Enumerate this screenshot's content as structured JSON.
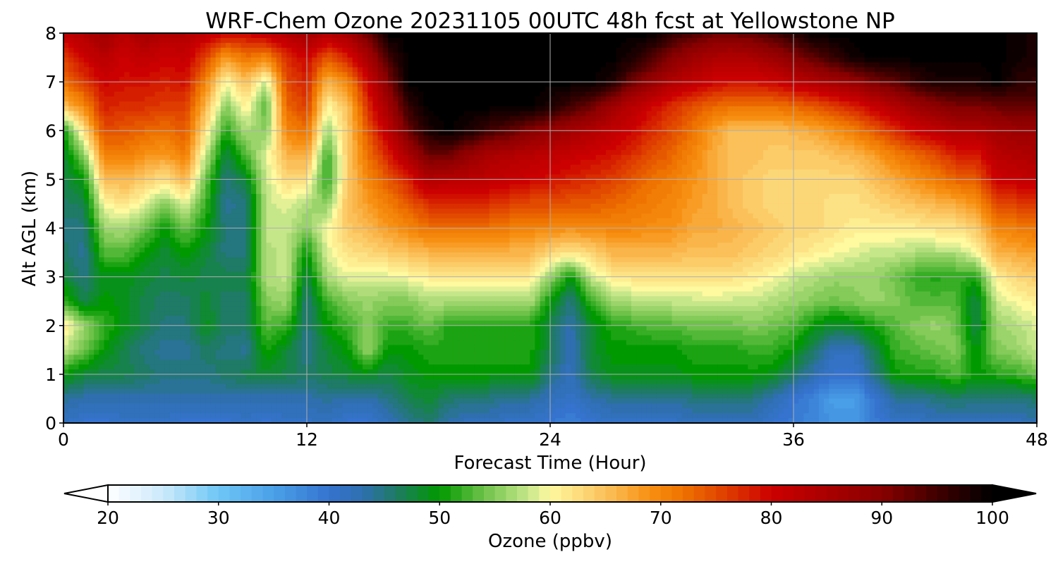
{
  "chart_data": {
    "type": "heatmap",
    "title": "WRF-Chem Ozone  20231105 00UTC 48h fcst at Yellowstone NP",
    "xlabel": "Forecast Time (Hour)",
    "ylabel": "Alt AGL (km)",
    "xlim": [
      0,
      48
    ],
    "ylim": [
      0,
      8
    ],
    "x_ticks": [
      0,
      12,
      24,
      36,
      48
    ],
    "y_ticks": [
      0,
      1,
      2,
      3,
      4,
      5,
      6,
      7,
      8
    ],
    "grid": true,
    "x_hours": [
      0,
      1,
      2,
      3,
      4,
      5,
      6,
      7,
      8,
      9,
      10,
      11,
      12,
      13,
      14,
      15,
      16,
      17,
      18,
      19,
      20,
      21,
      22,
      23,
      24,
      25,
      26,
      27,
      28,
      29,
      30,
      31,
      32,
      33,
      34,
      35,
      36,
      37,
      38,
      39,
      40,
      41,
      42,
      43,
      44,
      45,
      46,
      47,
      48
    ],
    "z_km": [
      0,
      0.5,
      1,
      1.5,
      2,
      2.5,
      3,
      3.5,
      4,
      4.5,
      5,
      5.5,
      6,
      6.5,
      7,
      7.5,
      8
    ],
    "ozone_ppbv": [
      [
        42,
        40,
        40,
        41,
        41,
        41,
        40,
        40,
        40,
        41,
        40,
        41,
        41,
        42,
        40,
        40,
        42,
        44,
        46,
        43,
        42,
        42,
        41,
        41,
        40,
        38,
        40,
        41,
        41,
        41,
        41,
        42,
        42,
        42,
        42,
        40,
        39,
        38,
        36,
        36,
        39,
        41,
        41,
        42,
        42,
        42,
        42,
        42,
        43
      ],
      [
        44,
        43,
        43,
        43,
        43,
        43,
        43,
        43,
        43,
        43,
        43,
        43,
        43,
        44,
        43,
        43,
        45,
        47,
        48,
        46,
        45,
        45,
        44,
        44,
        42,
        41,
        43,
        44,
        44,
        44,
        44,
        45,
        45,
        45,
        45,
        43,
        40,
        38,
        35,
        35,
        40,
        44,
        44,
        45,
        46,
        45,
        45,
        45,
        46
      ],
      [
        50,
        48,
        47,
        47,
        46,
        45,
        45,
        45,
        46,
        47,
        48,
        47,
        46,
        47,
        48,
        49,
        47,
        49,
        50,
        50,
        50,
        50,
        50,
        50,
        45,
        42,
        47,
        49,
        49,
        49,
        49,
        50,
        50,
        50,
        50,
        49,
        46,
        43,
        40,
        40,
        45,
        50,
        51,
        51,
        53,
        50,
        51,
        52,
        54
      ],
      [
        58,
        54,
        50,
        47,
        45,
        44,
        44,
        46,
        45,
        44,
        51,
        48,
        44,
        48,
        50,
        56,
        50,
        50,
        51,
        51,
        51,
        51,
        51,
        51,
        47,
        42,
        48,
        50,
        50,
        50,
        50,
        51,
        51,
        51,
        52,
        52,
        50,
        46,
        42,
        42,
        47,
        52,
        53,
        54,
        55,
        49,
        55,
        56,
        58
      ],
      [
        62,
        56,
        52,
        49,
        47,
        45,
        45,
        49,
        46,
        46,
        53,
        52,
        45,
        50,
        52,
        55,
        52,
        52,
        54,
        51,
        51,
        51,
        51,
        51,
        47,
        43,
        48,
        51,
        52,
        53,
        53,
        54,
        54,
        54,
        55,
        54,
        53,
        50,
        48,
        49,
        51,
        53,
        55,
        56,
        54,
        47,
        56,
        57,
        59
      ],
      [
        52,
        47,
        50,
        49,
        47,
        46,
        46,
        48,
        46,
        46,
        55,
        56,
        45,
        52,
        55,
        56,
        55,
        55,
        57,
        57,
        57,
        57,
        57,
        57,
        50,
        45,
        52,
        56,
        57,
        57,
        58,
        58,
        59,
        58,
        58,
        57,
        56,
        55,
        54,
        55,
        56,
        55,
        53,
        53,
        53,
        47,
        58,
        60,
        61
      ],
      [
        48,
        45,
        49,
        49,
        48,
        47,
        48,
        47,
        47,
        47,
        57,
        58,
        47,
        57,
        59,
        59,
        59,
        60,
        61,
        61,
        61,
        61,
        61,
        61,
        56,
        50,
        58,
        61,
        62,
        62,
        62,
        62,
        62,
        62,
        61,
        60,
        58,
        57,
        56,
        56,
        56,
        54,
        52,
        51,
        52,
        51,
        61,
        63,
        64
      ],
      [
        46,
        44,
        53,
        53,
        50,
        48,
        50,
        48,
        45,
        45,
        57,
        58,
        50,
        59,
        62,
        63,
        64,
        65,
        66,
        66,
        66,
        66,
        66,
        66,
        63,
        62,
        63,
        66,
        66,
        66,
        66,
        65,
        65,
        65,
        64,
        63,
        62,
        61,
        60,
        59,
        58,
        58,
        57,
        57,
        57,
        60,
        66,
        67,
        68
      ],
      [
        45,
        45,
        56,
        57,
        54,
        50,
        54,
        50,
        45,
        45,
        58,
        58,
        55,
        60,
        64,
        66,
        68,
        70,
        72,
        72,
        72,
        72,
        71,
        70,
        70,
        69,
        70,
        70,
        70,
        69,
        69,
        67,
        67,
        66,
        65,
        64,
        63,
        63,
        62,
        61,
        61,
        61,
        61,
        62,
        62,
        64,
        70,
        71,
        72
      ],
      [
        46,
        47,
        60,
        62,
        59,
        55,
        59,
        52,
        44,
        45,
        58,
        59,
        57,
        55,
        65,
        68,
        71,
        74,
        77,
        77,
        77,
        77,
        76,
        75,
        75,
        74,
        74,
        73,
        72,
        71,
        70,
        68,
        67,
        65,
        64,
        63,
        63,
        63,
        62,
        62,
        63,
        64,
        65,
        66,
        67,
        69,
        75,
        76,
        77
      ],
      [
        47,
        50,
        65,
        66,
        64,
        62,
        66,
        54,
        45,
        48,
        58,
        63,
        62,
        51,
        64,
        70,
        74,
        78,
        84,
        83,
        83,
        82,
        81,
        80,
        79,
        78,
        77,
        76,
        74,
        72,
        71,
        69,
        67,
        65,
        64,
        63,
        63,
        63,
        63,
        63,
        65,
        67,
        69,
        71,
        73,
        74,
        80,
        81,
        82
      ],
      [
        48,
        55,
        70,
        71,
        69,
        68,
        71,
        58,
        47,
        53,
        59,
        66,
        67,
        52,
        64,
        72,
        78,
        85,
        92,
        92,
        88,
        85,
        84,
        83,
        82,
        81,
        80,
        79,
        77,
        75,
        73,
        70,
        67,
        65,
        65,
        64,
        64,
        64,
        65,
        66,
        68,
        71,
        73,
        75,
        78,
        78,
        83,
        84,
        85
      ],
      [
        50,
        62,
        75,
        74,
        73,
        72,
        74,
        62,
        51,
        57,
        55,
        70,
        72,
        56,
        64,
        74,
        82,
        92,
        98,
        100,
        98,
        95,
        93,
        90,
        88,
        86,
        84,
        82,
        80,
        77,
        75,
        72,
        68,
        65,
        65,
        65,
        66,
        67,
        69,
        71,
        74,
        77,
        80,
        82,
        84,
        84,
        86,
        87,
        87
      ],
      [
        65,
        70,
        78,
        77,
        77,
        76,
        76,
        66,
        55,
        61,
        53,
        73,
        76,
        60,
        65,
        77,
        86,
        96,
        100,
        100,
        100,
        100,
        100,
        100,
        98,
        95,
        92,
        87,
        83,
        80,
        77,
        75,
        73,
        72,
        72,
        72,
        73,
        74,
        76,
        78,
        81,
        84,
        87,
        89,
        91,
        91,
        92,
        93,
        93
      ],
      [
        72,
        76,
        80,
        79,
        79,
        78,
        79,
        70,
        60,
        65,
        58,
        75,
        78,
        66,
        70,
        80,
        90,
        100,
        100,
        100,
        100,
        100,
        100,
        100,
        100,
        100,
        100,
        98,
        92,
        88,
        84,
        82,
        80,
        79,
        79,
        80,
        82,
        84,
        86,
        88,
        91,
        93,
        96,
        98,
        98,
        98,
        100,
        97,
        96
      ],
      [
        76,
        80,
        83,
        80,
        82,
        80,
        81,
        76,
        68,
        72,
        70,
        77,
        80,
        74,
        78,
        85,
        95,
        100,
        100,
        100,
        100,
        100,
        100,
        100,
        100,
        100,
        100,
        100,
        98,
        94,
        90,
        87,
        85,
        84,
        85,
        87,
        90,
        93,
        96,
        99,
        100,
        100,
        100,
        100,
        100,
        100,
        100,
        99,
        98
      ],
      [
        82,
        84,
        87,
        83,
        86,
        84,
        84,
        82,
        80,
        80,
        82,
        84,
        86,
        84,
        86,
        92,
        100,
        100,
        100,
        100,
        100,
        100,
        100,
        100,
        100,
        100,
        100,
        100,
        100,
        100,
        96,
        94,
        92,
        92,
        93,
        95,
        97,
        100,
        100,
        100,
        100,
        100,
        100,
        100,
        100,
        100,
        100,
        99,
        98
      ]
    ],
    "colorbar": {
      "label": "Ozone  (ppbv)",
      "min": 20,
      "max": 100,
      "step": 1,
      "ticks": [
        20,
        30,
        40,
        50,
        60,
        70,
        80,
        90,
        100
      ],
      "extend": "both",
      "stops": [
        {
          "v": 20,
          "c": "#ffffff"
        },
        {
          "v": 25,
          "c": "#cbe9fa"
        },
        {
          "v": 30,
          "c": "#6ec6f6"
        },
        {
          "v": 35,
          "c": "#4aa0e8"
        },
        {
          "v": 40,
          "c": "#3573cf"
        },
        {
          "v": 43,
          "c": "#2f6fb0"
        },
        {
          "v": 46,
          "c": "#1f7a66"
        },
        {
          "v": 50,
          "c": "#009900"
        },
        {
          "v": 54,
          "c": "#6ec24a"
        },
        {
          "v": 58,
          "c": "#c6e68a"
        },
        {
          "v": 60,
          "c": "#fff9a0"
        },
        {
          "v": 63,
          "c": "#fcd777"
        },
        {
          "v": 66,
          "c": "#fab54a"
        },
        {
          "v": 69,
          "c": "#f79012"
        },
        {
          "v": 72,
          "c": "#ee7300"
        },
        {
          "v": 76,
          "c": "#de3c00"
        },
        {
          "v": 80,
          "c": "#cc0000"
        },
        {
          "v": 85,
          "c": "#aa0000"
        },
        {
          "v": 90,
          "c": "#880000"
        },
        {
          "v": 95,
          "c": "#400000"
        },
        {
          "v": 100,
          "c": "#000000"
        }
      ]
    }
  }
}
